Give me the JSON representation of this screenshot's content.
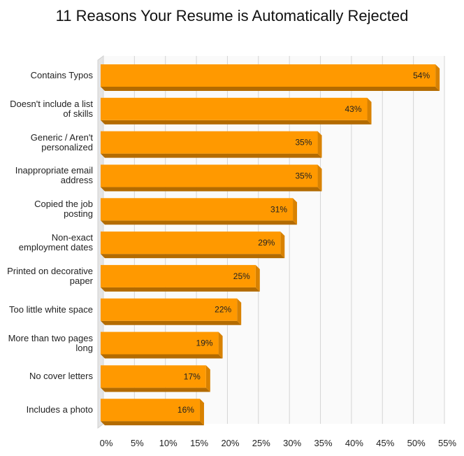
{
  "chart_data": {
    "type": "bar",
    "orientation": "horizontal",
    "title": "11 Reasons Your Resume is Automatically Rejected",
    "categories": [
      "Contains Typos",
      "Doesn't include a list of skills",
      "Generic / Aren't personalized",
      "Inappropriate email address",
      "Copied the job posting",
      "Non-exact employment dates",
      "Printed on decorative paper",
      "Too little white space",
      "More than two pages long",
      "No cover letters",
      "Includes a photo"
    ],
    "values": [
      54,
      43,
      35,
      35,
      31,
      29,
      25,
      22,
      19,
      17,
      16
    ],
    "value_labels": [
      "54%",
      "43%",
      "35%",
      "35%",
      "31%",
      "29%",
      "25%",
      "22%",
      "19%",
      "17%",
      "16%"
    ],
    "color": "#ff9900",
    "xlim": [
      0,
      55
    ],
    "xticks": [
      {
        "value": 0,
        "label": "0%"
      },
      {
        "value": 5,
        "label": "5%"
      },
      {
        "value": 10,
        "label": "10%"
      },
      {
        "value": 15,
        "label": "15%"
      },
      {
        "value": 20,
        "label": "20%"
      },
      {
        "value": 25,
        "label": "25%"
      },
      {
        "value": 30,
        "label": "30%"
      },
      {
        "value": 35,
        "label": "35%"
      },
      {
        "value": 40,
        "label": "40%"
      },
      {
        "value": 45,
        "label": "45%"
      },
      {
        "value": 50,
        "label": "50%"
      },
      {
        "value": 55,
        "label": "55%"
      }
    ],
    "grid": true
  }
}
